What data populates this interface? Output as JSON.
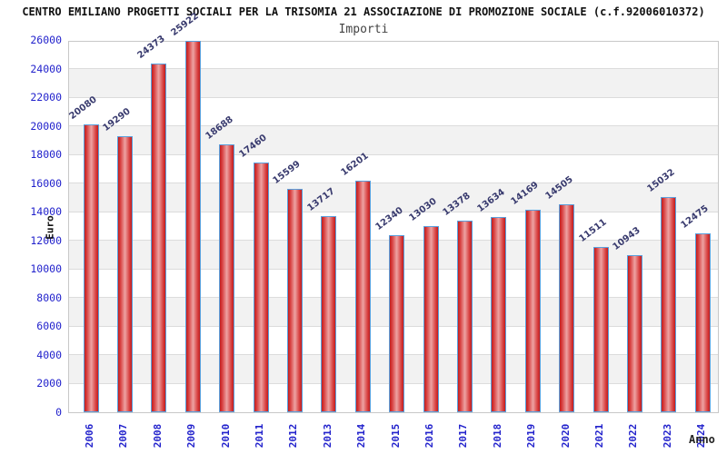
{
  "chart_data": {
    "type": "bar",
    "title": "CENTRO EMILIANO PROGETTI SOCIALI PER LA TRISOMIA 21 ASSOCIAZIONE DI PROMOZIONE SOCIALE (c.f.92006010372)",
    "subtitle": "Importi",
    "xlabel": "Anno",
    "ylabel": "Euro",
    "categories": [
      "2006",
      "2007",
      "2008",
      "2009",
      "2010",
      "2011",
      "2012",
      "2013",
      "2014",
      "2015",
      "2016",
      "2017",
      "2018",
      "2019",
      "2020",
      "2021",
      "2022",
      "2023",
      "2024"
    ],
    "values": [
      20080,
      19290,
      24373,
      25922,
      18688,
      17460,
      15599,
      13717,
      16201,
      12340,
      13030,
      13378,
      13634,
      14169,
      14505,
      11511,
      10943,
      15032,
      12475
    ],
    "ylim": [
      0,
      26000
    ],
    "ytick_interval": 2000,
    "grid": true,
    "legend_position": "none",
    "band_pattern": "alternating gray bands 2000-4000, 6000-8000, 10000-12000, 14000-16000, 18000-20000, 22000-24000",
    "colors": {
      "title_color": "#111111",
      "subtitle_color": "#444444",
      "axis_tick_label": "#2222cc",
      "value_label": "#383a6e",
      "bar_edge_dark": "#c21d1d",
      "bar_mid": "#d94343",
      "bar_center_light": "#eda3a3",
      "bar_border": "#5aa0dd",
      "band_gray": "#f2f2f2",
      "gridline": "#dcdcdc",
      "plot_border": "#c8c8c8"
    }
  }
}
